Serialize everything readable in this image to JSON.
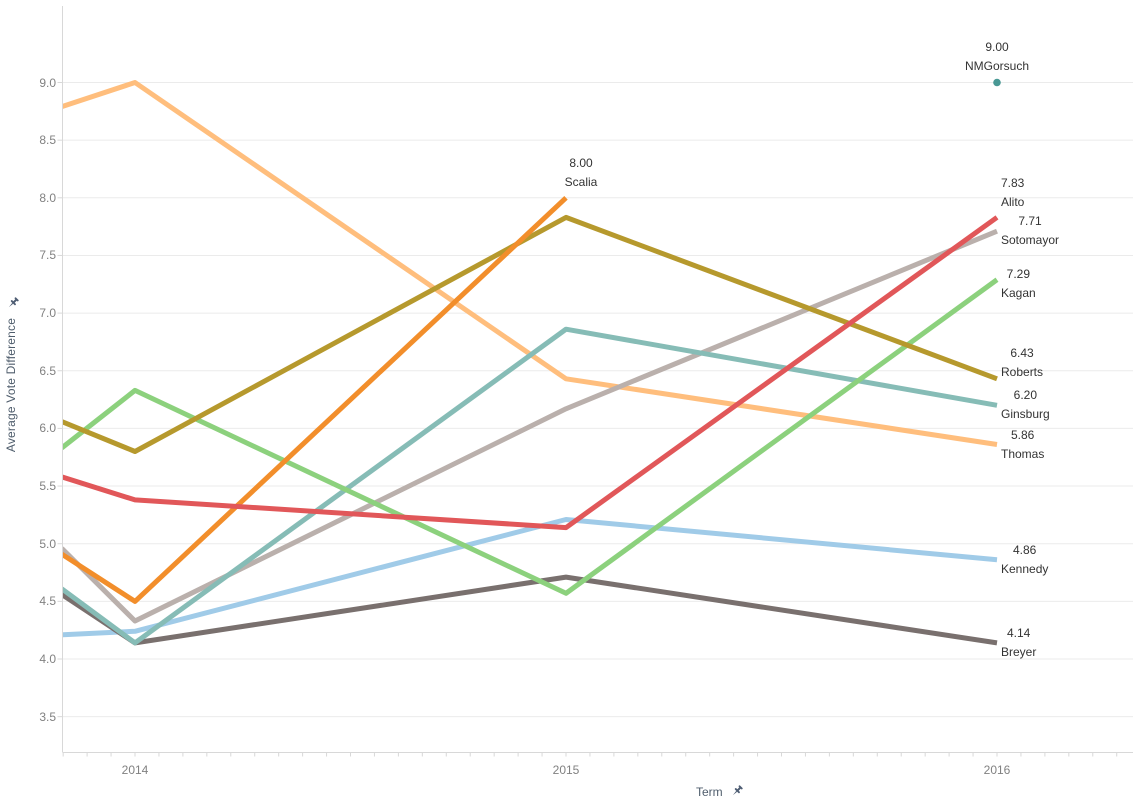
{
  "chart_data": {
    "type": "line",
    "title": "",
    "xlabel": "Term",
    "ylabel": "Average Vote Difference",
    "x_ticks": [
      "2014",
      "2015",
      "2016"
    ],
    "x_axis": {
      "terms": [
        2014,
        2015,
        2016
      ]
    },
    "y_axis": {
      "min": 3.5,
      "max": 9.0,
      "step": 0.5
    },
    "y_ticks": [
      "3.5",
      "4.0",
      "4.5",
      "5.0",
      "5.5",
      "6.0",
      "6.5",
      "7.0",
      "7.5",
      "8.0",
      "8.5",
      "9.0"
    ],
    "grid": true,
    "legend": "none (direct line labels at right)",
    "series": [
      {
        "name": "Thomas",
        "color": "#FFBE7D",
        "label_value": "5.86",
        "label_name": "Thomas",
        "label_position": "right_of_end",
        "points": [
          {
            "term": 2013.83,
            "value": 8.79,
            "clipped": true
          },
          {
            "term": 2014,
            "value": 9.0
          },
          {
            "term": 2015,
            "value": 6.43
          },
          {
            "term": 2016,
            "value": 5.86
          }
        ]
      },
      {
        "name": "Sotomayor",
        "color": "#BAB0AC",
        "label_value": "7.71",
        "label_name": "Sotomayor",
        "label_position": "right_of_end",
        "points": [
          {
            "term": 2013.83,
            "value": 4.96,
            "clipped": true
          },
          {
            "term": 2014,
            "value": 4.33
          },
          {
            "term": 2015,
            "value": 6.17
          },
          {
            "term": 2016,
            "value": 7.71
          }
        ]
      },
      {
        "name": "Kennedy",
        "color": "#A0CBE8",
        "label_value": "4.86",
        "label_name": "Kennedy",
        "label_position": "right_of_end",
        "points": [
          {
            "term": 2013.83,
            "value": 4.21,
            "clipped": true
          },
          {
            "term": 2014,
            "value": 4.24
          },
          {
            "term": 2015,
            "value": 5.21
          },
          {
            "term": 2016,
            "value": 4.86
          }
        ]
      },
      {
        "name": "Breyer",
        "color": "#79706E",
        "label_value": "4.14",
        "label_name": "Breyer",
        "label_position": "right_of_end",
        "points": [
          {
            "term": 2013.83,
            "value": 4.56,
            "clipped": true
          },
          {
            "term": 2014,
            "value": 4.14
          },
          {
            "term": 2015,
            "value": 4.71
          },
          {
            "term": 2016,
            "value": 4.14
          }
        ]
      },
      {
        "name": "Ginsburg",
        "color": "#86BCB6",
        "label_value": "6.20",
        "label_name": "Ginsburg",
        "label_position": "right_of_end",
        "points": [
          {
            "term": 2013.83,
            "value": 4.61,
            "clipped": true
          },
          {
            "term": 2014,
            "value": 4.14
          },
          {
            "term": 2015,
            "value": 6.86
          },
          {
            "term": 2016,
            "value": 6.2
          }
        ]
      },
      {
        "name": "Kagan",
        "color": "#8CD17D",
        "label_value": "7.29",
        "label_name": "Kagan",
        "label_position": "right_of_end",
        "points": [
          {
            "term": 2013.83,
            "value": 5.83,
            "clipped": true
          },
          {
            "term": 2014,
            "value": 6.33
          },
          {
            "term": 2015,
            "value": 4.57
          },
          {
            "term": 2016,
            "value": 7.29
          }
        ]
      },
      {
        "name": "Roberts",
        "color": "#B6992D",
        "label_value": "6.43",
        "label_name": "Roberts",
        "label_position": "right_of_end",
        "points": [
          {
            "term": 2013.83,
            "value": 6.06,
            "clipped": true
          },
          {
            "term": 2014,
            "value": 5.8
          },
          {
            "term": 2015,
            "value": 7.83
          },
          {
            "term": 2016,
            "value": 6.43
          }
        ]
      },
      {
        "name": "Scalia",
        "color": "#F28E2B",
        "label_value": "8.00",
        "label_name": "Scalia",
        "label_position": "above_end",
        "points": [
          {
            "term": 2013.83,
            "value": 4.91,
            "clipped": true
          },
          {
            "term": 2014,
            "value": 4.5
          },
          {
            "term": 2015,
            "value": 8.0
          }
        ]
      },
      {
        "name": "Alito",
        "color": "#E15759",
        "label_value": "7.83",
        "label_name": "Alito",
        "label_position": "right_of_end",
        "points": [
          {
            "term": 2013.83,
            "value": 5.58,
            "clipped": true
          },
          {
            "term": 2014,
            "value": 5.38
          },
          {
            "term": 2015,
            "value": 5.14
          },
          {
            "term": 2016,
            "value": 7.83
          }
        ]
      },
      {
        "name": "NMGorsuch",
        "color": "#499894",
        "label_value": "9.00",
        "label_name": "NMGorsuch",
        "label_position": "above_point",
        "marker": "dot",
        "points": [
          {
            "term": 2016,
            "value": 9.0
          }
        ]
      }
    ]
  },
  "axes": {
    "y_title": "Average Vote Difference",
    "x_title": "Term",
    "y_pin_icon": "pushpin-icon",
    "x_pin_icon": "pushpin-icon"
  },
  "colors": {
    "background": "#ffffff",
    "gridline": "#ebebeb",
    "axis_line": "#d8d8d8",
    "tick_label": "#818181",
    "data_label": "#333333",
    "axis_title": "#4f5d6c",
    "pin": "#4e5d73"
  }
}
